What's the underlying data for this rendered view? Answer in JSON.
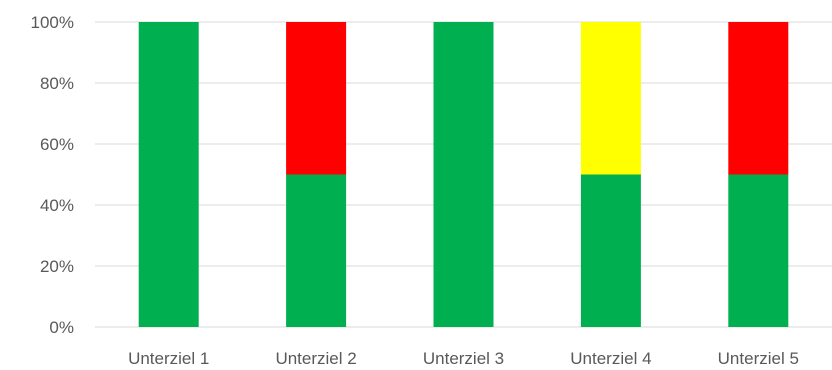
{
  "chart_data": {
    "type": "bar",
    "stacked": true,
    "percent_stacked": true,
    "categories": [
      "Unterziel 1",
      "Unterziel 2",
      "Unterziel 3",
      "Unterziel 4",
      "Unterziel 5"
    ],
    "series": [
      {
        "color": "#00b050",
        "values": [
          100,
          50,
          100,
          50,
          50
        ]
      },
      {
        "color": "#ffff00",
        "values": [
          0,
          0,
          0,
          50,
          0
        ]
      },
      {
        "color": "#ff0000",
        "values": [
          0,
          50,
          0,
          0,
          50
        ]
      }
    ],
    "ylim": [
      0,
      100
    ],
    "yticks": [
      "0%",
      "20%",
      "40%",
      "60%",
      "80%",
      "100%"
    ],
    "grid": true,
    "legend": "none"
  }
}
